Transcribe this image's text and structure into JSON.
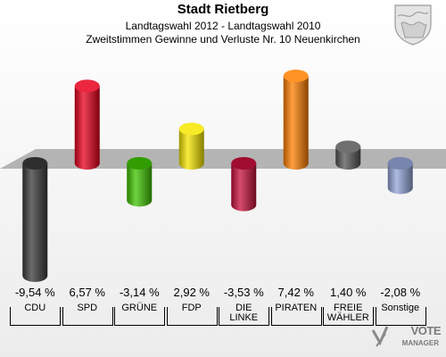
{
  "header": {
    "title": "Stadt Rietberg",
    "subtitle": "Landtagswahl 2012 - Landtagswahl 2010",
    "subsubtitle": "Zweitstimmen Gewinne und Verluste Nr. 10 Neuenkirchen"
  },
  "logo": {
    "line1": "VOTE",
    "line2": "MANAGER"
  },
  "chart_data": {
    "type": "bar",
    "title": "Stadt Rietberg",
    "categories": [
      "CDU",
      "SPD",
      "GRÜNE",
      "FDP",
      "DIE LINKE",
      "PIRATEN",
      "FREIE WÄHLER",
      "Sonstige"
    ],
    "category_lines": [
      [
        "CDU"
      ],
      [
        "SPD"
      ],
      [
        "GRÜNE"
      ],
      [
        "FDP"
      ],
      [
        "DIE",
        "LINKE"
      ],
      [
        "PIRATEN"
      ],
      [
        "FREIE",
        "WÄHLER"
      ],
      [
        "Sonstige"
      ]
    ],
    "values": [
      -9.54,
      6.57,
      -3.14,
      2.92,
      -3.53,
      7.42,
      1.4,
      -2.08
    ],
    "value_labels": [
      "-9,54 %",
      "6,57 %",
      "-3,14 %",
      "2,92 %",
      "-3,53 %",
      "7,42 %",
      "1,40 %",
      "-2,08 %"
    ],
    "colors": [
      "#3a3a3a",
      "#e8001c",
      "#3ec400",
      "#f6e600",
      "#c8103c",
      "#ff8000",
      "#555555",
      "#93a6d8"
    ],
    "zero_line": true,
    "grid": false,
    "legend": "none"
  }
}
